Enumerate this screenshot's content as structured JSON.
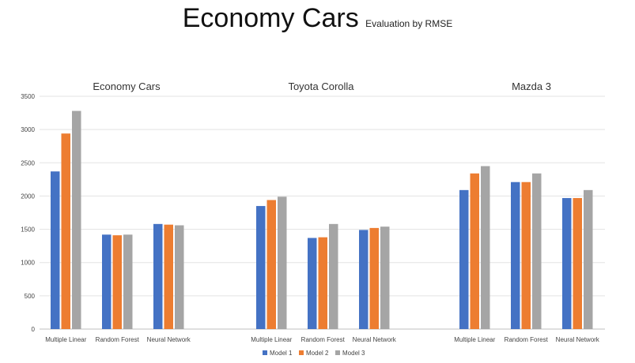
{
  "header": {
    "title": "Economy Cars",
    "subtitle": "Evaluation by RMSE"
  },
  "chart_data": {
    "type": "bar",
    "title": "Economy Cars",
    "subtitle": "Evaluation by RMSE",
    "xlabel": "",
    "ylabel": "",
    "ylim": [
      0,
      3500
    ],
    "yticks": [
      0,
      500,
      1000,
      1500,
      2000,
      2500,
      3000,
      3500
    ],
    "grid": true,
    "legend_position": "bottom",
    "series_names": [
      "Model 1",
      "Model 2",
      "Model 3"
    ],
    "colors": [
      "#4472C4",
      "#ED7D31",
      "#A5A5A5"
    ],
    "groups": [
      {
        "name": "Economy Cars",
        "categories": [
          "Multiple Linear",
          "Random Forest",
          "Neural Network"
        ],
        "values": [
          [
            2370,
            2940,
            3280
          ],
          [
            1420,
            1410,
            1420
          ],
          [
            1580,
            1570,
            1560
          ]
        ]
      },
      {
        "name": "Toyota Corolla",
        "categories": [
          "Multiple Linear",
          "Random Forest",
          "Neural Network"
        ],
        "values": [
          [
            1850,
            1940,
            1990
          ],
          [
            1370,
            1380,
            1580
          ],
          [
            1490,
            1520,
            1540
          ]
        ]
      },
      {
        "name": "Mazda 3",
        "categories": [
          "Multiple Linear",
          "Random Forest",
          "Neural Network"
        ],
        "values": [
          [
            2090,
            2340,
            2450
          ],
          [
            2210,
            2210,
            2340
          ],
          [
            1970,
            1970,
            2090
          ]
        ]
      }
    ]
  }
}
